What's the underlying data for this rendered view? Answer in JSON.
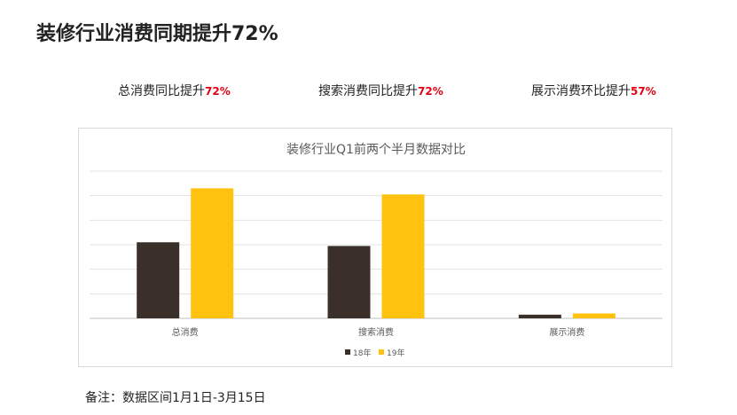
{
  "page": {
    "title": "装修行业消费同期提升72%"
  },
  "stats": [
    {
      "label": "总消费同比提升",
      "value": "72%"
    },
    {
      "label": "搜索消费同比提升",
      "value": "72%"
    },
    {
      "label": "展示消费环比提升",
      "value": "57%"
    }
  ],
  "footnote": "备注：数据区间1月1日-3月15日",
  "colors": {
    "series_18": "#3b2f2a",
    "series_19": "#ffc20e",
    "highlight": "#e60012"
  },
  "chart_data": {
    "type": "bar",
    "title": "装修行业Q1前两个半月数据对比",
    "categories": [
      "总消费",
      "搜索消费",
      "展示消费"
    ],
    "series": [
      {
        "name": "18年",
        "values": [
          31,
          29.5,
          1.5
        ]
      },
      {
        "name": "19年",
        "values": [
          53,
          50.5,
          2
        ]
      }
    ],
    "ylim": [
      0,
      60
    ],
    "grid": true,
    "legend": "bottom"
  }
}
